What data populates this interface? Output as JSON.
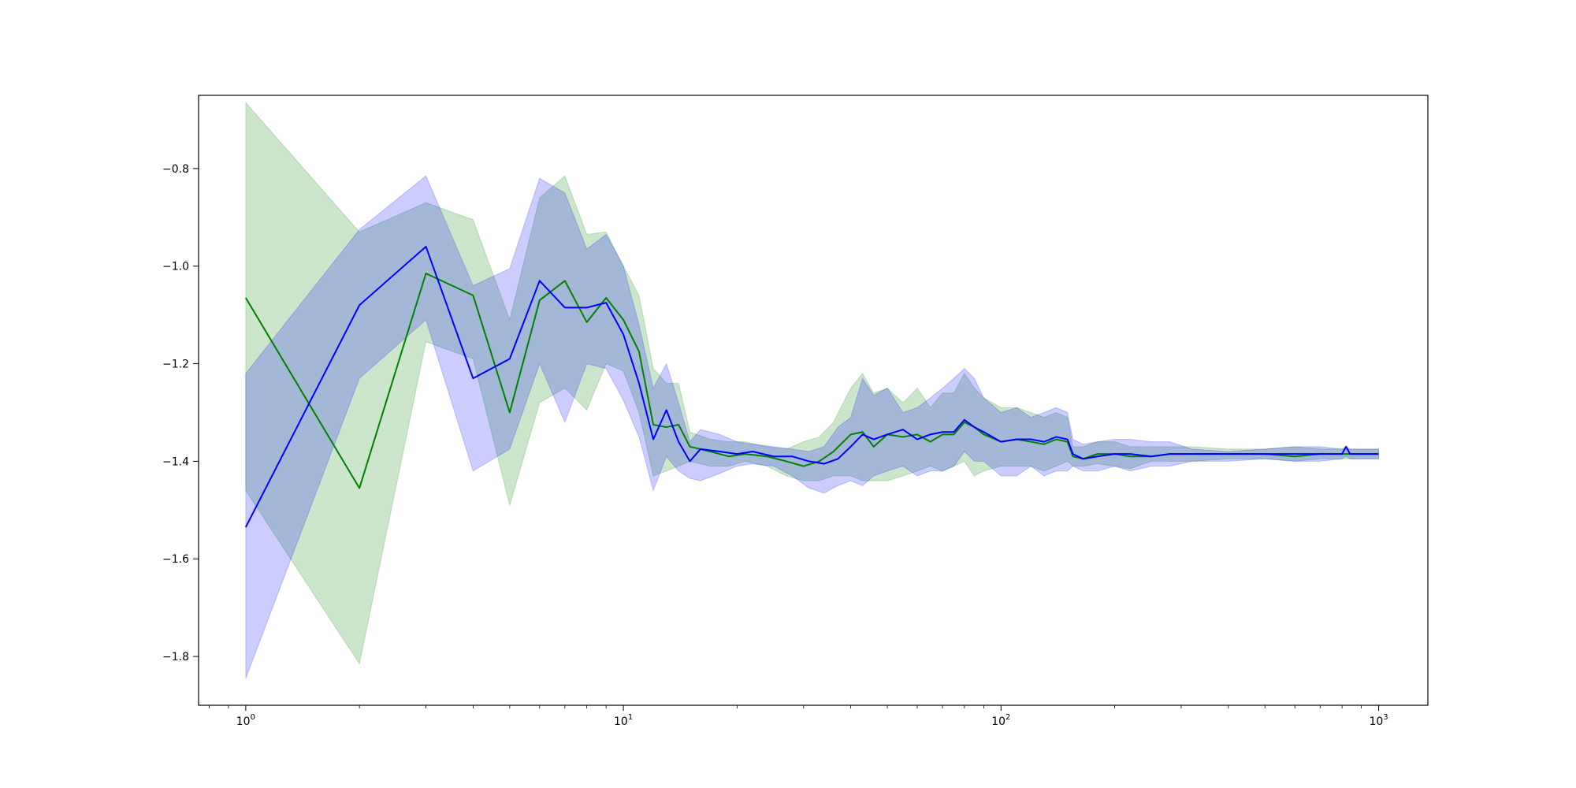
{
  "chart_data": {
    "type": "line",
    "title": "",
    "xlabel": "",
    "ylabel": "",
    "xscale": "log",
    "xlim": [
      0.75,
      1350
    ],
    "ylim": [
      -1.9,
      -0.65
    ],
    "grid": false,
    "legend": "none",
    "x_ticks": [
      {
        "value": 1,
        "base": "10",
        "exp": "0"
      },
      {
        "value": 10,
        "base": "10",
        "exp": "1"
      },
      {
        "value": 100,
        "base": "10",
        "exp": "2"
      },
      {
        "value": 1000,
        "base": "10",
        "exp": "3"
      }
    ],
    "y_ticks": [
      {
        "value": -0.8,
        "label": "−0.8"
      },
      {
        "value": -1.0,
        "label": "−1.0"
      },
      {
        "value": -1.2,
        "label": "−1.2"
      },
      {
        "value": -1.4,
        "label": "−1.4"
      },
      {
        "value": -1.6,
        "label": "−1.6"
      },
      {
        "value": -1.8,
        "label": "−1.8"
      }
    ],
    "series": [
      {
        "color": "#008000",
        "band_color": "#008000",
        "band_alpha": 0.2,
        "x": [
          1,
          2,
          3,
          4,
          5,
          6,
          7,
          8,
          9,
          10,
          11,
          12,
          13,
          14,
          15,
          17,
          19,
          21,
          24,
          27,
          30,
          33,
          36,
          40,
          43,
          46,
          50,
          55,
          60,
          65,
          70,
          75,
          80,
          85,
          90,
          100,
          110,
          120,
          130,
          140,
          150,
          155,
          165,
          180,
          200,
          220,
          250,
          280,
          320,
          400,
          500,
          600,
          700,
          800,
          900,
          1000
        ],
        "y": [
          -1.065,
          -1.455,
          -1.015,
          -1.06,
          -1.3,
          -1.07,
          -1.03,
          -1.115,
          -1.065,
          -1.11,
          -1.175,
          -1.325,
          -1.33,
          -1.325,
          -1.37,
          -1.38,
          -1.39,
          -1.385,
          -1.39,
          -1.4,
          -1.41,
          -1.4,
          -1.38,
          -1.345,
          -1.34,
          -1.37,
          -1.345,
          -1.35,
          -1.345,
          -1.36,
          -1.345,
          -1.345,
          -1.32,
          -1.33,
          -1.345,
          -1.36,
          -1.355,
          -1.36,
          -1.365,
          -1.355,
          -1.36,
          -1.39,
          -1.395,
          -1.385,
          -1.385,
          -1.39,
          -1.39,
          -1.385,
          -1.385,
          -1.385,
          -1.385,
          -1.39,
          -1.385,
          -1.385,
          -1.385,
          -1.385
        ],
        "lower": [
          -1.46,
          -1.815,
          -1.155,
          -1.19,
          -1.49,
          -1.28,
          -1.25,
          -1.295,
          -1.2,
          -1.215,
          -1.3,
          -1.43,
          -1.42,
          -1.41,
          -1.4,
          -1.41,
          -1.41,
          -1.4,
          -1.41,
          -1.43,
          -1.44,
          -1.44,
          -1.43,
          -1.43,
          -1.44,
          -1.44,
          -1.44,
          -1.43,
          -1.42,
          -1.41,
          -1.42,
          -1.41,
          -1.4,
          -1.43,
          -1.42,
          -1.41,
          -1.41,
          -1.41,
          -1.42,
          -1.41,
          -1.4,
          -1.41,
          -1.41,
          -1.405,
          -1.41,
          -1.415,
          -1.4,
          -1.4,
          -1.4,
          -1.395,
          -1.395,
          -1.4,
          -1.395,
          -1.395,
          -1.395,
          -1.395
        ],
        "upper": [
          -0.665,
          -0.93,
          -0.87,
          -0.905,
          -1.11,
          -0.86,
          -0.815,
          -0.935,
          -0.93,
          -1.0,
          -1.06,
          -1.21,
          -1.24,
          -1.24,
          -1.34,
          -1.355,
          -1.36,
          -1.36,
          -1.37,
          -1.375,
          -1.36,
          -1.35,
          -1.32,
          -1.25,
          -1.22,
          -1.26,
          -1.25,
          -1.28,
          -1.25,
          -1.29,
          -1.26,
          -1.26,
          -1.22,
          -1.25,
          -1.27,
          -1.29,
          -1.29,
          -1.3,
          -1.31,
          -1.3,
          -1.31,
          -1.37,
          -1.37,
          -1.36,
          -1.36,
          -1.37,
          -1.37,
          -1.37,
          -1.37,
          -1.375,
          -1.375,
          -1.37,
          -1.375,
          -1.375,
          -1.375,
          -1.375
        ]
      },
      {
        "color": "#0000ff",
        "band_color": "#0000ff",
        "band_alpha": 0.2,
        "x": [
          1,
          2,
          3,
          4,
          5,
          6,
          7,
          8,
          9,
          10,
          11,
          12,
          13,
          14,
          15,
          16,
          18,
          20,
          22,
          25,
          28,
          31,
          34,
          37,
          40,
          43,
          46,
          50,
          55,
          60,
          65,
          70,
          75,
          80,
          85,
          90,
          100,
          110,
          120,
          130,
          140,
          150,
          155,
          165,
          180,
          200,
          220,
          250,
          280,
          320,
          400,
          500,
          600,
          700,
          800,
          820,
          840,
          900,
          1000
        ],
        "y": [
          -1.535,
          -1.08,
          -0.96,
          -1.23,
          -1.19,
          -1.03,
          -1.085,
          -1.085,
          -1.075,
          -1.14,
          -1.24,
          -1.355,
          -1.295,
          -1.36,
          -1.4,
          -1.375,
          -1.38,
          -1.385,
          -1.38,
          -1.39,
          -1.39,
          -1.4,
          -1.405,
          -1.395,
          -1.37,
          -1.345,
          -1.355,
          -1.345,
          -1.335,
          -1.355,
          -1.345,
          -1.34,
          -1.34,
          -1.315,
          -1.33,
          -1.34,
          -1.36,
          -1.355,
          -1.355,
          -1.36,
          -1.35,
          -1.355,
          -1.385,
          -1.395,
          -1.39,
          -1.385,
          -1.385,
          -1.39,
          -1.385,
          -1.385,
          -1.385,
          -1.385,
          -1.385,
          -1.385,
          -1.385,
          -1.37,
          -1.385,
          -1.385,
          -1.385
        ],
        "lower": [
          -1.845,
          -1.23,
          -1.11,
          -1.42,
          -1.375,
          -1.2,
          -1.32,
          -1.2,
          -1.21,
          -1.275,
          -1.35,
          -1.46,
          -1.39,
          -1.42,
          -1.435,
          -1.44,
          -1.425,
          -1.41,
          -1.405,
          -1.41,
          -1.43,
          -1.455,
          -1.465,
          -1.45,
          -1.44,
          -1.45,
          -1.43,
          -1.42,
          -1.41,
          -1.43,
          -1.42,
          -1.42,
          -1.41,
          -1.38,
          -1.4,
          -1.4,
          -1.43,
          -1.43,
          -1.41,
          -1.43,
          -1.42,
          -1.42,
          -1.41,
          -1.42,
          -1.42,
          -1.41,
          -1.42,
          -1.41,
          -1.41,
          -1.4,
          -1.4,
          -1.395,
          -1.4,
          -1.4,
          -1.395,
          -1.39,
          -1.395,
          -1.395,
          -1.395
        ],
        "upper": [
          -1.22,
          -0.925,
          -0.815,
          -1.04,
          -1.005,
          -0.82,
          -0.85,
          -0.965,
          -0.935,
          -1.0,
          -1.12,
          -1.25,
          -1.2,
          -1.28,
          -1.36,
          -1.335,
          -1.345,
          -1.36,
          -1.365,
          -1.37,
          -1.375,
          -1.38,
          -1.37,
          -1.33,
          -1.31,
          -1.23,
          -1.265,
          -1.25,
          -1.3,
          -1.29,
          -1.27,
          -1.25,
          -1.23,
          -1.21,
          -1.23,
          -1.27,
          -1.3,
          -1.29,
          -1.31,
          -1.3,
          -1.29,
          -1.3,
          -1.355,
          -1.365,
          -1.36,
          -1.355,
          -1.355,
          -1.36,
          -1.36,
          -1.375,
          -1.38,
          -1.375,
          -1.37,
          -1.37,
          -1.375,
          -1.37,
          -1.375,
          -1.375,
          -1.375
        ]
      }
    ]
  }
}
